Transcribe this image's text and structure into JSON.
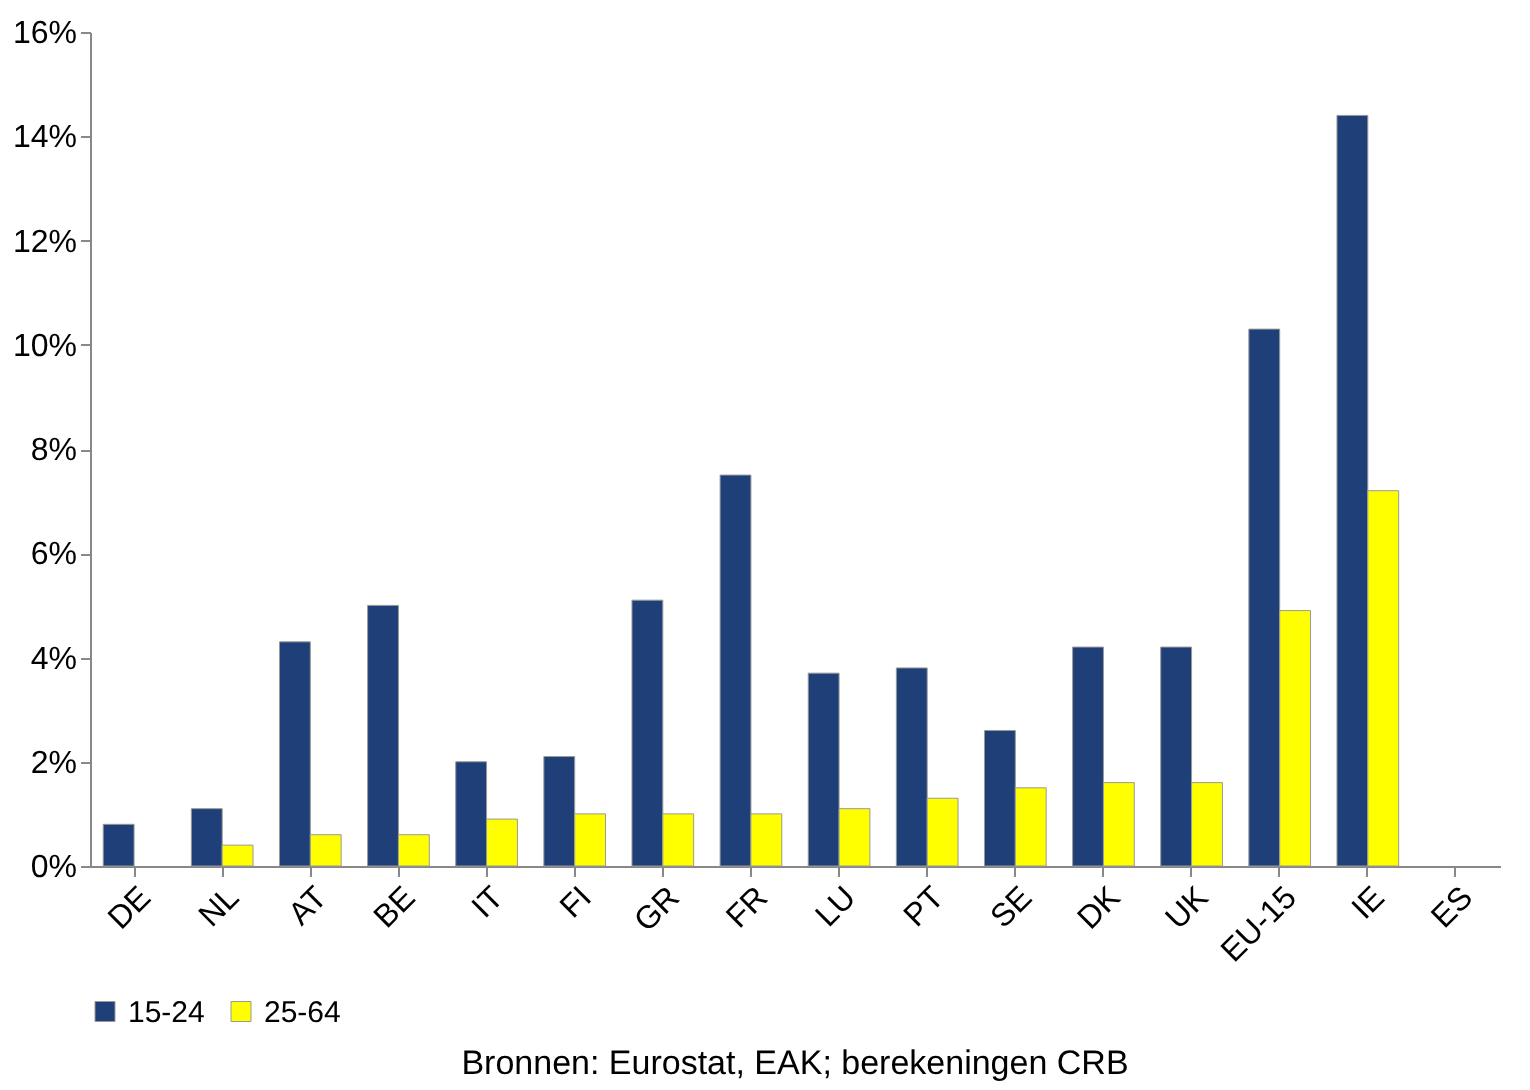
{
  "chart_data": {
    "type": "bar",
    "categories": [
      "DE",
      "NL",
      "AT",
      "BE",
      "IT",
      "FI",
      "GR",
      "FR",
      "LU",
      "PT",
      "SE",
      "DK",
      "UK",
      "EU-15",
      "IE",
      "ES"
    ],
    "series": [
      {
        "name": "15-24",
        "color": "#1f3f78",
        "values": [
          0.8,
          1.1,
          4.3,
          5.0,
          2.0,
          2.1,
          5.1,
          7.5,
          3.7,
          3.8,
          2.6,
          4.2,
          4.2,
          10.3,
          14.4,
          null
        ]
      },
      {
        "name": "25-64",
        "color": "#ffff00",
        "values": [
          null,
          0.4,
          0.6,
          0.6,
          0.9,
          1.0,
          1.0,
          1.0,
          1.1,
          1.3,
          1.5,
          1.6,
          1.6,
          4.9,
          7.2,
          null
        ]
      }
    ],
    "ylim": [
      0,
      16
    ],
    "yticks": [
      {
        "value": 0,
        "label": "0%"
      },
      {
        "value": 2,
        "label": "2%"
      },
      {
        "value": 4,
        "label": "4%"
      },
      {
        "value": 6,
        "label": "6%"
      },
      {
        "value": 8,
        "label": "8%"
      },
      {
        "value": 10,
        "label": "10%"
      },
      {
        "value": 12,
        "label": "12%"
      },
      {
        "value": 14,
        "label": "14%"
      },
      {
        "value": 16,
        "label": "16%"
      }
    ],
    "grid": false,
    "legend": "bottom",
    "annotations": [
      "Bronnen: Eurostat, EAK; berekeningen CRB"
    ]
  }
}
